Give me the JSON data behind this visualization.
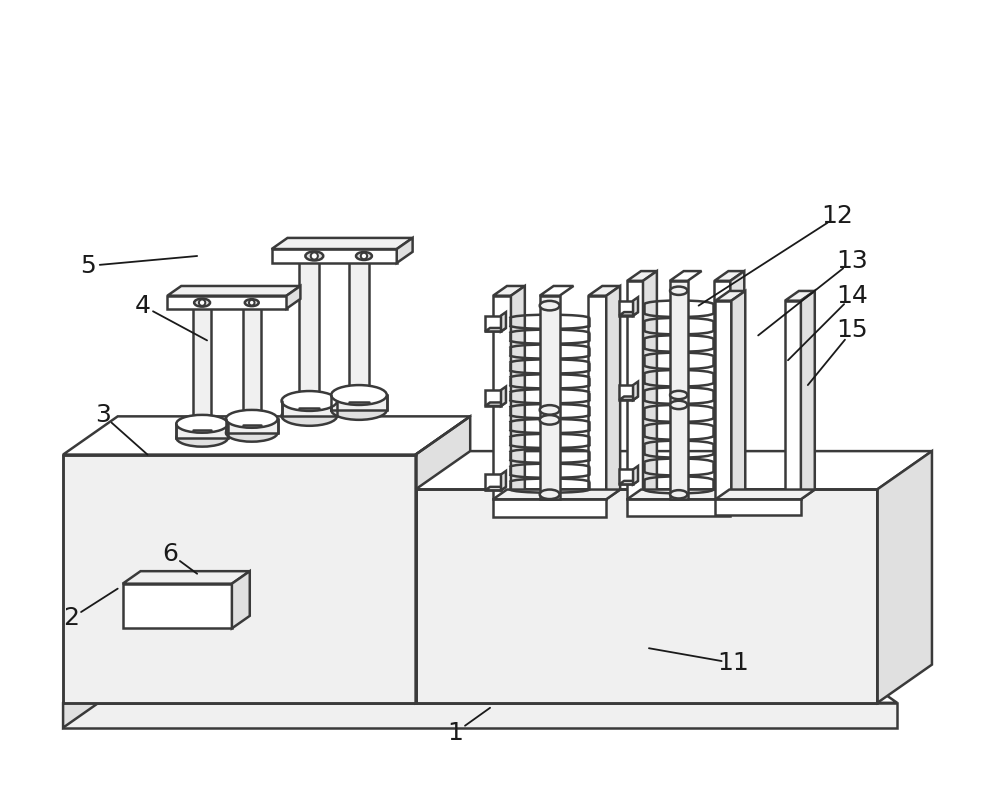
{
  "bg": "#ffffff",
  "lc": "#3a3a3a",
  "lw": 1.8,
  "fc_white": "#ffffff",
  "fc_light": "#f0f0f0",
  "fc_mid": "#e0e0e0",
  "fc_dark": "#c8c8c8",
  "figsize": [
    10.0,
    7.93
  ],
  "labels": [
    [
      "1",
      455,
      735,
      490,
      710
    ],
    [
      "2",
      68,
      620,
      115,
      590
    ],
    [
      "3",
      100,
      415,
      145,
      455
    ],
    [
      "4",
      140,
      305,
      205,
      340
    ],
    [
      "5",
      85,
      265,
      195,
      255
    ],
    [
      "6",
      168,
      555,
      195,
      575
    ],
    [
      "11",
      735,
      665,
      650,
      650
    ],
    [
      "12",
      840,
      215,
      700,
      305
    ],
    [
      "13",
      855,
      260,
      760,
      335
    ],
    [
      "14",
      855,
      295,
      790,
      360
    ],
    [
      "15",
      855,
      330,
      810,
      385
    ]
  ]
}
